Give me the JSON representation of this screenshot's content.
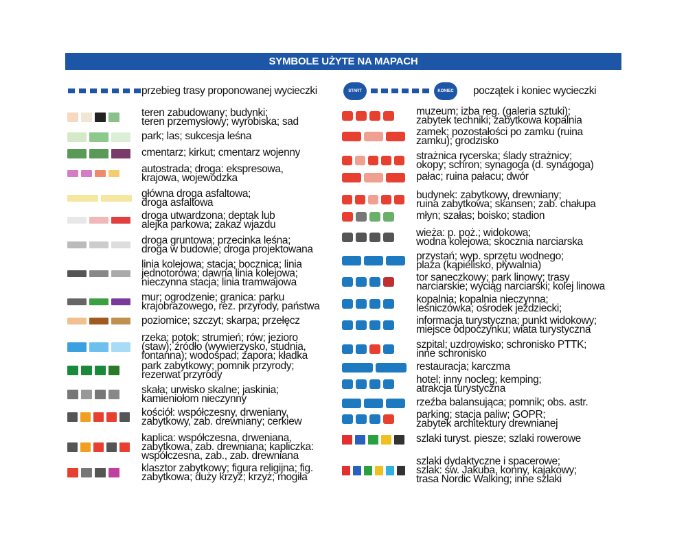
{
  "title": "SYMBOLE UŻYTE NA MAPACH",
  "route": {
    "label": "przebieg trasy proponowanej wycieczki",
    "color": "#1d56a6"
  },
  "start_end": {
    "start": "START",
    "end": "KONIEC",
    "label": "początek i koniec wycieczki"
  },
  "left": [
    {
      "label": "teren zabudowany; budynki;\nteren przemysłowy; wyrobiska; sad",
      "symbol": [
        "#f6d9c0",
        "#f0e6d6",
        "#222",
        "#8cc08a"
      ]
    },
    {
      "label": "park; las; sukcesja leśna",
      "symbol": [
        "#d4e9c8",
        "#8cc98a",
        "#dcefd6"
      ]
    },
    {
      "label": "cmentarz; kirkut; cmentarz wojenny",
      "symbol": [
        "#5a9a58",
        "#5a9a58",
        "#7a3a6a"
      ]
    },
    {
      "label": "autostrada; droga: ekspresowa,\nkrajowa, wojewódzka",
      "symbol": [
        "#d47cc6",
        "#d47cc6",
        "#f08a6a",
        "#f6cc70"
      ]
    },
    {
      "label": "główna droga asfaltowa;\ndroga asfaltowa",
      "symbol": [
        "#f6e7a0",
        "#f6e7a0"
      ]
    },
    {
      "label": "droga utwardzona; deptak lub\nalejka parkowa; zakaz wjazdu",
      "symbol": [
        "#e8e8e8",
        "#f0b8b8",
        "#e04040"
      ]
    },
    {
      "label": "droga gruntowa; przecinka leśna;\ndroga w budowie; droga projektowana",
      "symbol": [
        "#bbbbbb",
        "#cccccc",
        "#dddddd"
      ]
    },
    {
      "label": "linia kolejowa; stacja; bocznica; linia\njednotorowa; dawna linia kolejowa;\nnieczynna stacja; linia tramwajowa",
      "symbol": [
        "#555555",
        "#888888",
        "#aaaaaa"
      ]
    },
    {
      "label": "mur; ogrodzenie; granica: parku\nkrajobrazowego, rez. przyrody, państwa",
      "symbol": [
        "#666666",
        "#3aa040",
        "#7a3a9a"
      ]
    },
    {
      "label": "poziomice; szczyt; skarpa; przełęcz",
      "symbol": [
        "#f0c090",
        "#a05a20",
        "#c09050"
      ]
    },
    {
      "label": "rzeka; potok; strumień; rów; jezioro\n(staw); źródło (wywierzysko, studnia,\nfontanna);  wodospad; zapora; kładka",
      "symbol": [
        "#3aa0e0",
        "#6cc0f0",
        "#a8dcf6"
      ]
    },
    {
      "label": "park zabytkowy; pomnik przyrody;\nrezerwat przyrody",
      "symbol": [
        "#1a8a3a",
        "#1a8a3a",
        "#1a8a3a",
        "#2a7a2a"
      ]
    },
    {
      "label": "skała; urwisko skalne; jaskinia;\nkamieniołom nieczynny",
      "symbol": [
        "#777777",
        "#999999",
        "#777777",
        "#888888"
      ]
    },
    {
      "label": "kościół: współczesny, drweniany,\nzabytkowy, zab. drewniany; cerkiew",
      "symbol": [
        "#555555",
        "#f0a020",
        "#e84030",
        "#e84030",
        "#555555"
      ]
    },
    {
      "label": "kaplica: współczesna, drweniana,\nzabytkowa, zab. drewniana; kapliczka:\nwspółczesna, zab., zab. drewniana",
      "symbol": [
        "#555555",
        "#f0a020",
        "#e84030",
        "#555555",
        "#e84030"
      ]
    },
    {
      "label": "klasztor zabytkowy; figura religijna; fig.\nzabytkowa; duży krzyż; krzyż; mogiła",
      "symbol": [
        "#e84030",
        "#777777",
        "#555555",
        "#c040a0"
      ]
    }
  ],
  "right": [
    {
      "label": "muzeum; izba reg. (galeria sztuki);\nzabytek techniki; zabytkowa kopalnia",
      "symbol": [
        "#e84030",
        "#e84030",
        "#e84030",
        "#e84030"
      ]
    },
    {
      "label": "zamek; pozostałości po zamku (ruina\nzamku); grodzisko",
      "symbol": [
        "#e84030",
        "#f0a090",
        "#e84030"
      ]
    },
    {
      "label": "strażnica rycerska; ślady strażnicy;\nokopy; schron; synagoga (d. synagoga)",
      "symbol": [
        "#e84030",
        "#f0a090",
        "#e84030",
        "#e84030",
        "#e84030"
      ]
    },
    {
      "label": "pałac; ruina pałacu; dwór",
      "symbol": [
        "#e84030",
        "#f0a090",
        "#e84030"
      ]
    },
    {
      "label": "budynek: zabytkowy, drewniany;\nruina zabytkowa; skansen; zab. chałupa",
      "symbol": [
        "#e84030",
        "#e84030",
        "#f0a090",
        "#e84030",
        "#e84030"
      ]
    },
    {
      "label": "młyn; szałas; boisko; stadion",
      "symbol": [
        "#e84030",
        "#777777",
        "#6ab06a",
        "#6ab06a"
      ]
    },
    {
      "label": "wieża: p. poż.;  widokowa;\nwodna kolejowa; skocznia narciarska",
      "symbol": [
        "#555555",
        "#555555",
        "#555555",
        "#555555"
      ]
    },
    {
      "label": "przystań; wyp. sprzętu wodnego;\nplaża (kąpielisko, pływalnia)",
      "symbol": [
        "#1d7ac0",
        "#1d7ac0",
        "#1d7ac0"
      ]
    },
    {
      "label": "tor saneczkowy; park linowy; trasy\nnarciarskie; wyciąg narciarski; kolej linowa",
      "symbol": [
        "#1d7ac0",
        "#1d7ac0",
        "#1d7ac0",
        "#c03030"
      ]
    },
    {
      "label": "kopalnia; kopalnia nieczynna;\nleśniczówka; ośrodek jeździecki;",
      "symbol": [
        "#1d7ac0",
        "#1d7ac0",
        "#1d7ac0",
        "#1d7ac0"
      ]
    },
    {
      "label": "informacja turystyczna; punkt widokowy;\nmiejsce odpoczynku; wiata turystyczna",
      "symbol": [
        "#1d7ac0",
        "#1d7ac0",
        "#1d7ac0",
        "#1d7ac0"
      ]
    },
    {
      "label": "szpital; uzdrowisko; schronisko PTTK;\ninne schronisko",
      "symbol": [
        "#1d7ac0",
        "#1d7ac0",
        "#e84030",
        "#1d7ac0"
      ]
    },
    {
      "label": "restauracja; karczma",
      "symbol": [
        "#1d7ac0",
        "#1d7ac0"
      ]
    },
    {
      "label": "hotel; inny nocleg; kemping;\natrakcja turystyczna",
      "symbol": [
        "#1d7ac0",
        "#1d7ac0",
        "#1d7ac0",
        "#1d7ac0"
      ]
    },
    {
      "label": "rzeźba balansująca; pomnik; obs. astr.",
      "symbol": [
        "#1d7ac0",
        "#1d7ac0",
        "#1d7ac0"
      ]
    },
    {
      "label": "parking; stacja paliw; GOPR;\nzabytek architektury drewnianej",
      "symbol": [
        "#1d7ac0",
        "#1d7ac0",
        "#1d7ac0",
        "#e84030"
      ]
    },
    {
      "label": "szlaki turyst. piesze; szlaki rowerowe",
      "symbol": [
        "#e03030",
        "#2a60c0",
        "#2aa040",
        "#f0c020",
        "#333333"
      ]
    },
    {
      "label": "szlaki dydaktyczne i spacerowe;\nszlak: św. Jakuba, konny, kajakowy;\ntrasa Nordic Walking; inne szlaki",
      "symbol": [
        "#e03030",
        "#2a60c0",
        "#2aa040",
        "#f0c020",
        "#30b0e0",
        "#333333"
      ]
    }
  ]
}
